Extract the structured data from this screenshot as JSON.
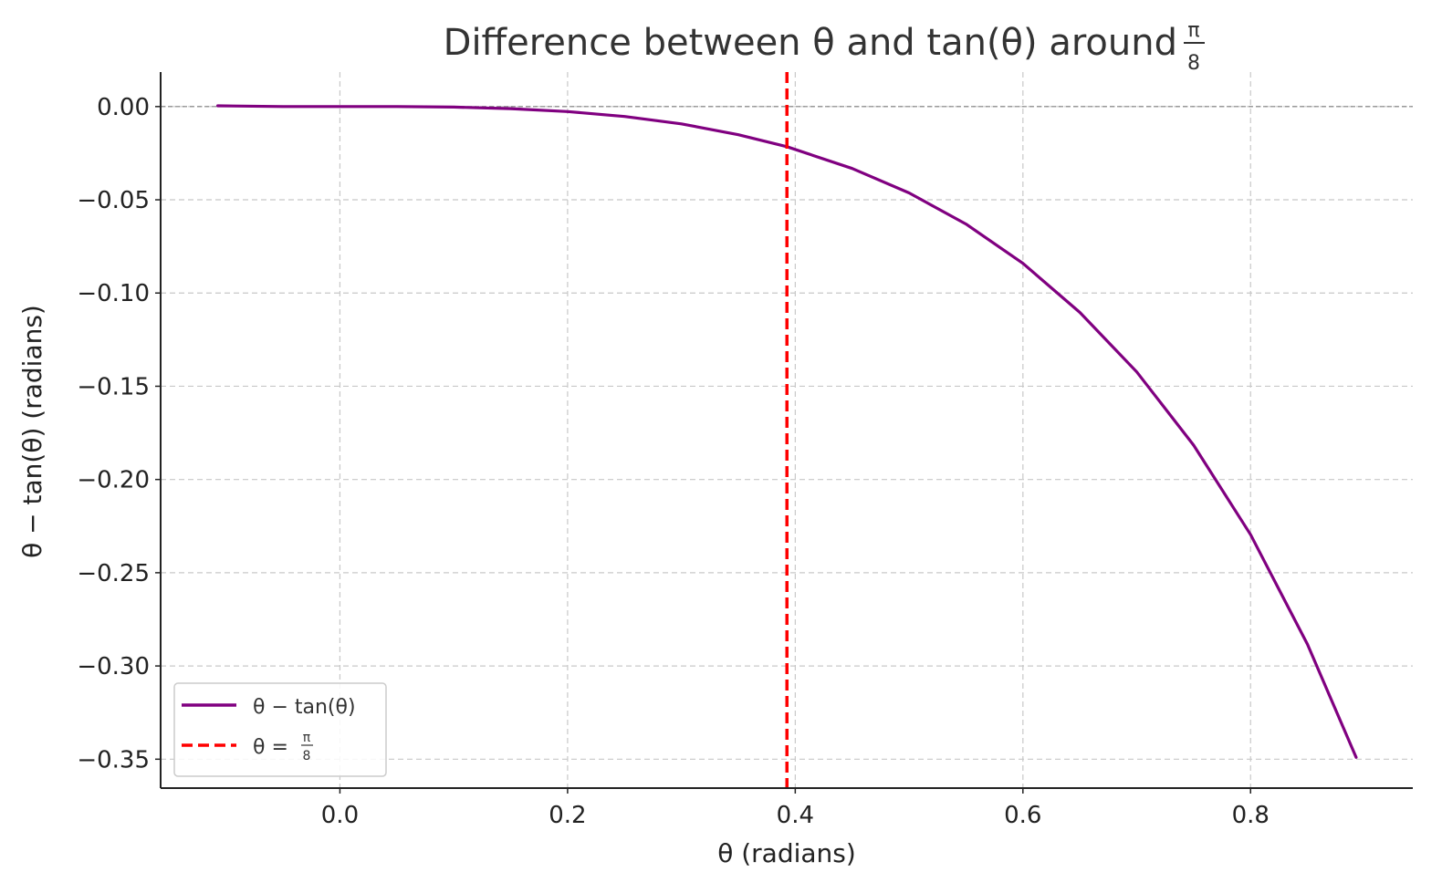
{
  "chart_data": {
    "type": "line",
    "title": "Difference between θ and tan(θ) around π/8",
    "title_text": "Difference between θ and tan(θ) around",
    "title_frac": {
      "num": "π",
      "den": "8"
    },
    "xlabel": "θ (radians)",
    "ylabel": "θ − tan(θ) (radians)",
    "xlim": [
      -0.1575,
      0.9425
    ],
    "ylim": [
      -0.3655,
      0.0185
    ],
    "x_ticks": [
      0.0,
      0.2,
      0.4,
      0.6,
      0.8
    ],
    "x_tick_labels": [
      "0.0",
      "0.2",
      "0.4",
      "0.6",
      "0.8"
    ],
    "y_ticks": [
      0.0,
      -0.05,
      -0.1,
      -0.15,
      -0.2,
      -0.25,
      -0.3,
      -0.35
    ],
    "y_tick_labels": [
      "0.00",
      "−0.05",
      "−0.10",
      "−0.15",
      "−0.20",
      "−0.25",
      "−0.30",
      "−0.35"
    ],
    "grid": true,
    "legend_position": "lower-left",
    "series": [
      {
        "name": "θ − tan(θ)",
        "color": "#800080",
        "style": "solid",
        "x": [
          -0.1073,
          -0.05,
          0.0,
          0.05,
          0.1,
          0.15,
          0.2,
          0.25,
          0.3,
          0.35,
          0.3927,
          0.45,
          0.5,
          0.55,
          0.6,
          0.65,
          0.7,
          0.75,
          0.8,
          0.85,
          0.8927
        ],
        "y": [
          0.0004,
          0.0,
          0.0,
          -0.0,
          -0.0003,
          -0.0011,
          -0.0027,
          -0.0053,
          -0.0093,
          -0.0151,
          -0.0215,
          -0.0332,
          -0.0463,
          -0.063,
          -0.0841,
          -0.1104,
          -0.1423,
          -0.1816,
          -0.2296,
          -0.2884,
          -0.349
        ]
      },
      {
        "name": "θ = π/8",
        "legend_label": "θ =",
        "legend_frac": {
          "num": "π",
          "den": "8"
        },
        "color": "#ff0000",
        "style": "dashed",
        "vline_x": 0.3927
      }
    ],
    "reference_line": {
      "y": 0.0,
      "color": "#808080",
      "style": "dashed"
    }
  }
}
